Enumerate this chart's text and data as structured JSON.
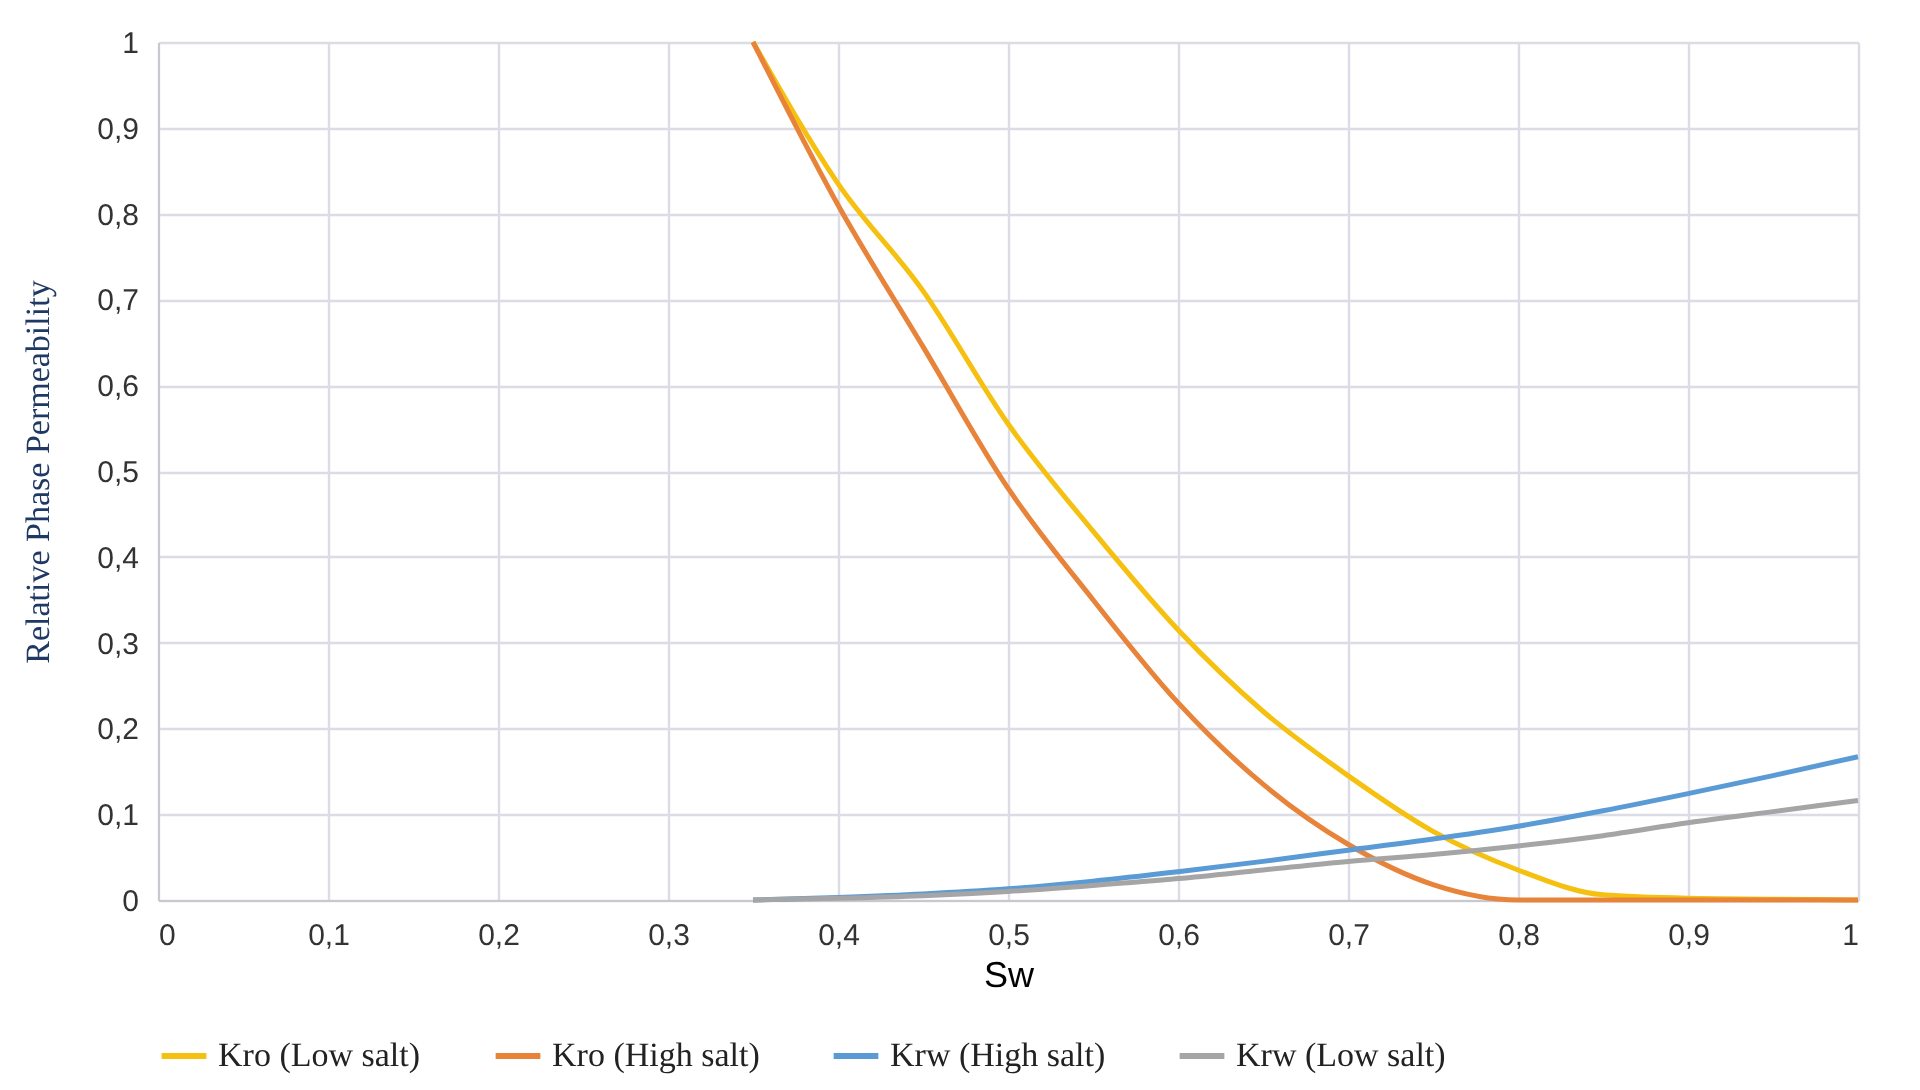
{
  "chart_data": {
    "type": "line",
    "xlabel": "Sw",
    "ylabel": "Relative Phase Permeability",
    "xlim": [
      0,
      1
    ],
    "ylim": [
      0,
      1
    ],
    "xticks": [
      0,
      {
        "value": 0.1,
        "label": "0,1"
      },
      {
        "value": 0.2,
        "label": "0,2"
      },
      {
        "value": 0.3,
        "label": "0,3"
      },
      {
        "value": 0.4,
        "label": "0,4"
      },
      {
        "value": 0.5,
        "label": "0,5"
      },
      {
        "value": 0.6,
        "label": "0,6"
      },
      {
        "value": 0.7,
        "label": "0,7"
      },
      {
        "value": 0.8,
        "label": "0,8"
      },
      {
        "value": 0.9,
        "label": "0,9"
      },
      1
    ],
    "yticks": [
      0,
      {
        "value": 0.1,
        "label": "0,1"
      },
      {
        "value": 0.2,
        "label": "0,2"
      },
      {
        "value": 0.3,
        "label": "0,3"
      },
      {
        "value": 0.4,
        "label": "0,4"
      },
      {
        "value": 0.5,
        "label": "0,5"
      },
      {
        "value": 0.6,
        "label": "0,6"
      },
      {
        "value": 0.7,
        "label": "0,7"
      },
      {
        "value": 0.8,
        "label": "0,8"
      },
      {
        "value": 0.9,
        "label": "0,9"
      },
      1
    ],
    "x": [
      0.35,
      0.4,
      0.45,
      0.5,
      0.55,
      0.6,
      0.65,
      0.7,
      0.75,
      0.8,
      0.85,
      0.9,
      0.95,
      1.0
    ],
    "series": [
      {
        "name": "Kro (Low salt)",
        "color": "#f5c010",
        "values": [
          1.0,
          0.835,
          0.71,
          0.555,
          0.43,
          0.315,
          0.22,
          0.145,
          0.08,
          0.035,
          0.006,
          0.002,
          0.001,
          0.0
        ]
      },
      {
        "name": "Kro (High salt)",
        "color": "#e8833a",
        "values": [
          1.0,
          0.81,
          0.645,
          0.48,
          0.35,
          0.23,
          0.135,
          0.065,
          0.018,
          0.0,
          0.0,
          0.0,
          0.0,
          0.0
        ]
      },
      {
        "name": "Krw (High salt)",
        "color": "#5b9bd5",
        "values": [
          0.0,
          0.003,
          0.007,
          0.013,
          0.022,
          0.033,
          0.045,
          0.058,
          0.071,
          0.086,
          0.104,
          0.124,
          0.145,
          0.167
        ]
      },
      {
        "name": "Krw (Low salt)",
        "color": "#a5a5a5",
        "values": [
          0.0,
          0.002,
          0.005,
          0.01,
          0.017,
          0.025,
          0.035,
          0.045,
          0.053,
          0.063,
          0.075,
          0.09,
          0.103,
          0.116
        ]
      }
    ],
    "grid": true,
    "legend": "bottom",
    "marker": "none",
    "line_style": "solid"
  }
}
